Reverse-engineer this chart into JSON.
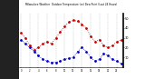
{
  "title": "Milwaukee Weather  Outdoor Temperature (vs) Dew Point (Last 24 Hours)",
  "temp": [
    35,
    30,
    22,
    18,
    20,
    24,
    26,
    24,
    30,
    36,
    42,
    46,
    48,
    47,
    44,
    40,
    32,
    26,
    28,
    22,
    20,
    22,
    26,
    28
  ],
  "dew": [
    28,
    24,
    20,
    16,
    12,
    8,
    6,
    5,
    5,
    6,
    8,
    9,
    10,
    16,
    20,
    16,
    10,
    6,
    8,
    14,
    12,
    8,
    6,
    4
  ],
  "temp_color": "#cc0000",
  "dew_color": "#0000cc",
  "ylim": [
    0,
    55
  ],
  "ytick_vals": [
    10,
    20,
    30,
    40,
    50
  ],
  "ytick_labels": [
    "10",
    "20",
    "30",
    "40",
    "50"
  ],
  "grid_color": "#aaaaaa",
  "bg_color": "#ffffff",
  "fig_bg": "#ffffff",
  "left_bg": "#222222",
  "marker_size": 2.0,
  "line_width": 0.6,
  "n_points": 24,
  "figwidth": 1.6,
  "figheight": 0.87,
  "dpi": 100
}
